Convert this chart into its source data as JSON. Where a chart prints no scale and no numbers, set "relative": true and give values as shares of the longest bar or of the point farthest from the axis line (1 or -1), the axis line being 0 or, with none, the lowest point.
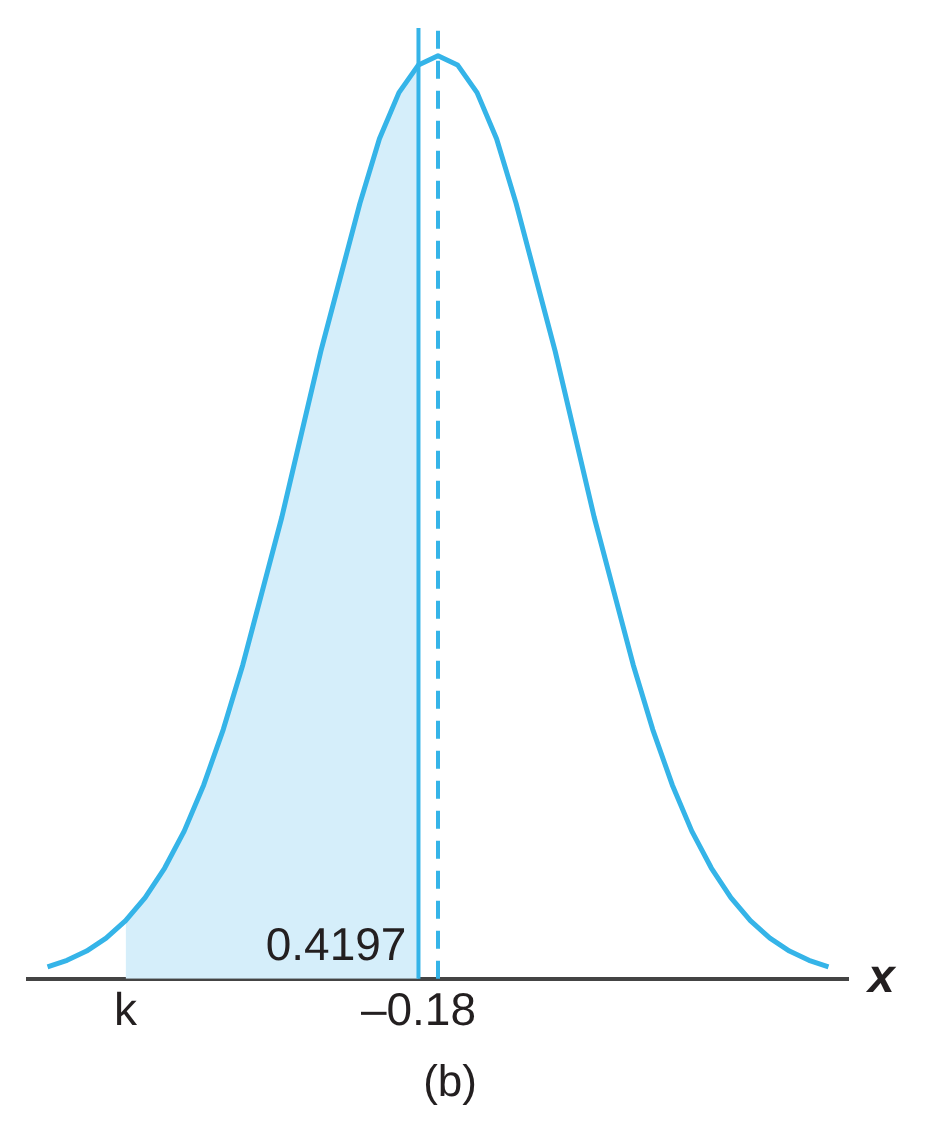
{
  "chart_data": {
    "type": "line",
    "relative": true,
    "xlabel": "x",
    "categories": [
      null,
      null,
      null,
      null,
      null,
      "k",
      null,
      null,
      null,
      null,
      null,
      null,
      null,
      null,
      null,
      null,
      null,
      null,
      null,
      null,
      "–0.18",
      null,
      null,
      null,
      null,
      null,
      null,
      null,
      null,
      null,
      null,
      null,
      null,
      null,
      null,
      null,
      null,
      null,
      null,
      null,
      null,
      null,
      null
    ],
    "series": [
      {
        "type": "line",
        "color": "#35b4e8",
        "values": [
          null,
          0.013,
          0.02,
          0.03,
          0.044,
          0.063,
          0.088,
          0.12,
          0.16,
          0.21,
          0.27,
          0.34,
          0.42,
          0.5,
          0.59,
          0.68,
          0.76,
          0.84,
          0.91,
          0.96,
          0.99,
          1,
          0.99,
          0.96,
          0.91,
          0.84,
          0.76,
          0.68,
          0.59,
          0.5,
          0.42,
          0.34,
          0.27,
          0.21,
          0.16,
          0.12,
          0.088,
          0.063,
          0.044,
          0.03,
          0.02,
          0.013,
          null
        ]
      },
      {
        "type": "area",
        "color": "#d5eefa",
        "values": [
          null,
          null,
          null,
          null,
          null,
          0.063,
          0.088,
          0.12,
          0.16,
          0.21,
          0.27,
          0.34,
          0.42,
          0.5,
          0.59,
          0.68,
          0.76,
          0.84,
          0.91,
          0.96,
          0.99,
          null,
          null,
          null,
          null,
          null,
          null,
          null,
          null,
          null,
          null,
          null,
          null,
          null,
          null,
          null,
          null,
          null,
          null,
          null,
          null,
          null,
          null
        ]
      }
    ],
    "ref_lines": [
      {
        "axis": "x",
        "value": "–0.18",
        "color": "#35b4e8",
        "line_style": "solid"
      },
      {
        "axis": "x",
        "color": "#35b4e8",
        "line_style": "dashed"
      }
    ],
    "annotations": [
      "0.4197",
      "(b)"
    ],
    "grid": false,
    "legend": false
  }
}
